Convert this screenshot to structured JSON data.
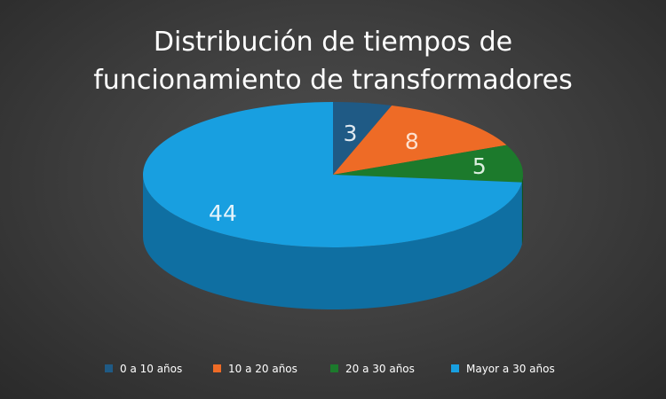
{
  "chart_data": {
    "type": "pie",
    "title_lines": [
      "Distribución de tiempos de",
      "funcionamiento de transformadores"
    ],
    "categories": [
      "0 a 10 años",
      "10 a 20 años",
      "20 a 30 años",
      "Mayor a 30 años"
    ],
    "values": [
      3,
      8,
      5,
      44
    ],
    "colors": [
      "#1f5a85",
      "#ee6b26",
      "#1c7a2c",
      "#189fe0"
    ],
    "side_colors": [
      "#143e5e",
      "#b24f1a",
      "#10521c",
      "#0f6fa2"
    ],
    "label_colors": [
      "#dfe8ef",
      "#fde0cf",
      "#dcefdf",
      "#e6f4fb"
    ],
    "style": "3d",
    "legend_position": "bottom"
  }
}
